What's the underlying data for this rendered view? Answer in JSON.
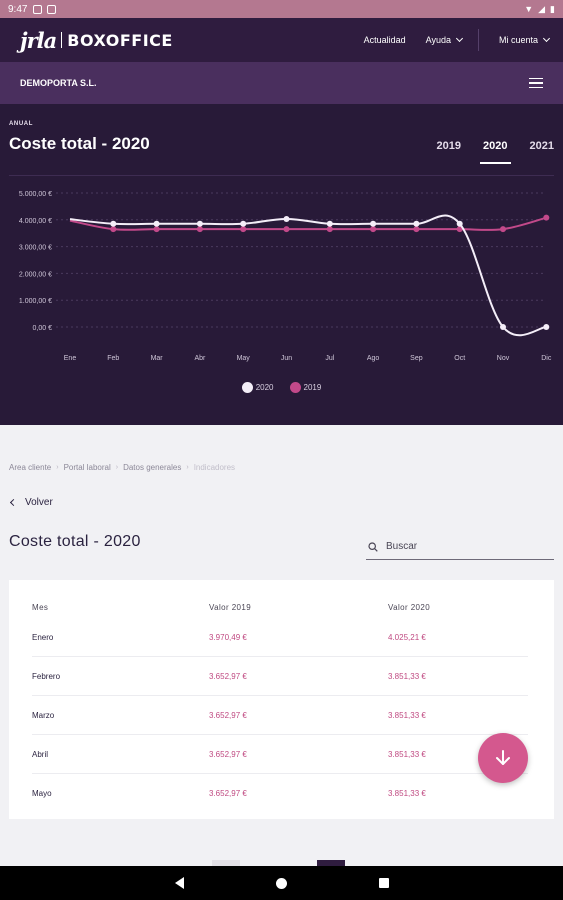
{
  "status_bar": {
    "time": "9:47"
  },
  "nav": {
    "logo_main": "jrla",
    "logo_product": "BOXOFFICE",
    "links": [
      "Actualidad",
      "Ayuda",
      "Mi cuenta"
    ]
  },
  "company": {
    "name": "DEMOPORTA S.L."
  },
  "chart_panel": {
    "eyebrow": "ANUAL",
    "title": "Coste total - 2020",
    "year_tabs": [
      "2019",
      "2020",
      "2021"
    ],
    "active_year": "2020"
  },
  "chart_data": {
    "type": "line",
    "categories": [
      "Ene",
      "Feb",
      "Mar",
      "Abr",
      "May",
      "Jun",
      "Jul",
      "Ago",
      "Sep",
      "Oct",
      "Nov",
      "Dic"
    ],
    "y_ticks": [
      "0,00 €",
      "1.000,00 €",
      "2.000,00 €",
      "3.000,00 €",
      "4.000,00 €",
      "5.000,00 €"
    ],
    "ylim": [
      0,
      5000
    ],
    "grid": true,
    "legend_position": "bottom",
    "series": [
      {
        "name": "2020",
        "color": "#f4eef8",
        "values": [
          4025.21,
          3851.33,
          3851.33,
          3851.33,
          3851.33,
          4030,
          3851.33,
          3851.33,
          3851.33,
          3851.33,
          0,
          0
        ]
      },
      {
        "name": "2019",
        "color": "#c2498a",
        "values": [
          3970.49,
          3652.97,
          3652.97,
          3652.97,
          3652.97,
          3652.97,
          3652.97,
          3652.97,
          3652.97,
          3652.97,
          3652.97,
          4080
        ]
      }
    ]
  },
  "breadcrumb": [
    "Area cliente",
    "Portal laboral",
    "Datos generales",
    "Indicadores"
  ],
  "back_label": "Volver",
  "page_title": "Coste total - 2020",
  "search": {
    "placeholder": "Buscar"
  },
  "table": {
    "headers": [
      "Mes",
      "Valor 2019",
      "Valor 2020"
    ],
    "rows": [
      [
        "Enero",
        "3.970,49 €",
        "4.025,21 €"
      ],
      [
        "Febrero",
        "3.652,97 €",
        "3.851,33 €"
      ],
      [
        "Marzo",
        "3.652,97 €",
        "3.851,33 €"
      ],
      [
        "Abril",
        "3.652,97 €",
        "3.851,33 €"
      ],
      [
        "Mayo",
        "3.652,97 €",
        "3.851,33 €"
      ]
    ]
  },
  "colors": {
    "header": "#2f1c3f",
    "subheader": "#4a2f5e",
    "panel": "#281a38",
    "accent": "#d4588e"
  }
}
